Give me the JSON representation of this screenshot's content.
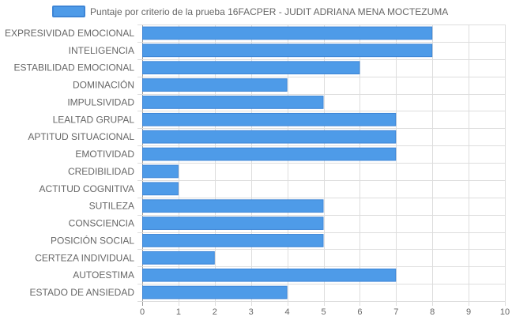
{
  "chart_data": {
    "type": "bar",
    "orientation": "horizontal",
    "categories": [
      "EXPRESIVIDAD EMOCIONAL",
      "INTELIGENCIA",
      "ESTABILIDAD EMOCIONAL",
      "DOMINACIÓN",
      "IMPULSIVIDAD",
      "LEALTAD GRUPAL",
      "APTITUD SITUACIONAL",
      "EMOTIVIDAD",
      "CREDIBILIDAD",
      "ACTITUD COGNITIVA",
      "SUTILEZA",
      "CONSCIENCIA",
      "POSICIÓN SOCIAL",
      "CERTEZA INDIVIDUAL",
      "AUTOESTIMA",
      "ESTADO DE ANSIEDAD"
    ],
    "series": [
      {
        "name": "Puntaje por criterio de la prueba 16FACPER - JUDIT ADRIANA MENA MOCTEZUMA",
        "values": [
          8,
          8,
          6,
          4,
          5,
          7,
          7,
          7,
          1,
          1,
          5,
          5,
          5,
          2,
          7,
          4
        ],
        "color": "#4e9be8",
        "border_color": "#3d85d6"
      }
    ],
    "xlim": [
      0,
      10
    ],
    "x_ticks": [
      "0",
      "1",
      "2",
      "3",
      "4",
      "5",
      "6",
      "7",
      "8",
      "9",
      "10"
    ],
    "grid": true,
    "legend_position": "top"
  }
}
